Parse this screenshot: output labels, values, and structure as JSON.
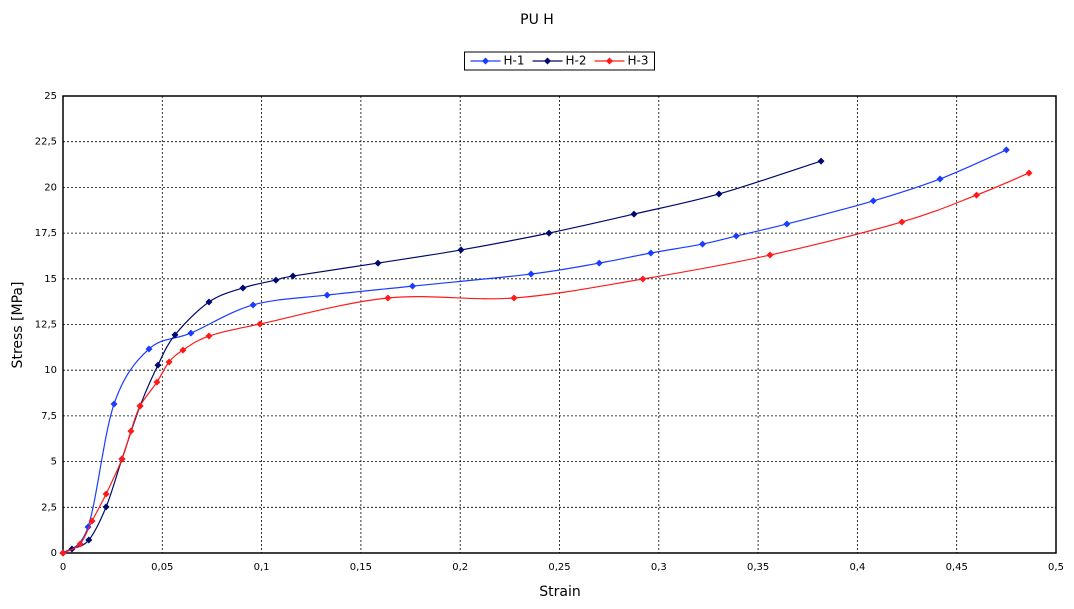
{
  "chart_data": {
    "type": "line",
    "title": "PU H",
    "x_label": "Strain",
    "y_label": "Stress [MPa]",
    "xlim": [
      0,
      0.5
    ],
    "ylim": [
      0,
      25
    ],
    "xticks": [
      0,
      {
        "value": 0.05,
        "label": "0,05"
      },
      {
        "value": 0.1,
        "label": "0,1"
      },
      {
        "value": 0.15,
        "label": "0,15"
      },
      {
        "value": 0.2,
        "label": "0,2"
      },
      {
        "value": 0.25,
        "label": "0,25"
      },
      {
        "value": 0.3,
        "label": "0,3"
      },
      {
        "value": 0.35,
        "label": "0,35"
      },
      {
        "value": 0.4,
        "label": "0,4"
      },
      {
        "value": 0.45,
        "label": "0,45"
      },
      {
        "value": 0.5,
        "label": "0,5"
      }
    ],
    "yticks": [
      0,
      {
        "value": 2.5,
        "label": "2,5"
      },
      5,
      {
        "value": 7.5,
        "label": "7,5"
      },
      10,
      {
        "value": 12.5,
        "label": "12,5"
      },
      15,
      {
        "value": 17.5,
        "label": "17,5"
      },
      20,
      {
        "value": 22.5,
        "label": "22,5"
      },
      25
    ],
    "grid": true,
    "legend": "top",
    "series": [
      {
        "name": "H-1",
        "color": "#1a3cff",
        "x": [
          0,
          0.0126,
          0.0257,
          0.0433,
          0.0644,
          0.0957,
          0.133,
          0.176,
          0.2357,
          0.27,
          0.296,
          0.322,
          0.339,
          0.3645,
          0.408,
          0.4416,
          0.475
        ],
        "values": [
          0,
          1.42,
          8.15,
          11.16,
          12.03,
          13.57,
          14.11,
          14.6,
          15.26,
          15.86,
          16.41,
          16.9,
          17.34,
          18.0,
          19.26,
          20.46,
          22.05
        ]
      },
      {
        "name": "H-2",
        "color": "#000a6e",
        "x": [
          0,
          0.0045,
          0.013,
          0.0217,
          0.0297,
          0.0388,
          0.0478,
          0.0564,
          0.0735,
          0.0906,
          0.1072,
          0.1158,
          0.1586,
          0.2004,
          0.2447,
          0.2875,
          0.3303,
          0.3817
        ],
        "values": [
          0,
          0.22,
          0.71,
          2.52,
          5.14,
          8.04,
          10.28,
          11.93,
          13.73,
          14.5,
          14.93,
          15.15,
          15.86,
          16.58,
          17.5,
          18.54,
          19.64,
          21.44
        ]
      },
      {
        "name": "H-3",
        "color": "#ff1a1a",
        "x": [
          0,
          0.0086,
          0.0146,
          0.0217,
          0.0297,
          0.0342,
          0.0388,
          0.0473,
          0.0534,
          0.0604,
          0.0735,
          0.0992,
          0.1636,
          0.2271,
          0.292,
          0.356,
          0.4224,
          0.46,
          0.4864
        ],
        "values": [
          0,
          0.49,
          1.75,
          3.23,
          5.14,
          6.67,
          8.04,
          9.35,
          10.45,
          11.1,
          11.87,
          12.53,
          13.95,
          13.95,
          14.99,
          16.3,
          18.11,
          19.58,
          20.79
        ]
      }
    ]
  }
}
